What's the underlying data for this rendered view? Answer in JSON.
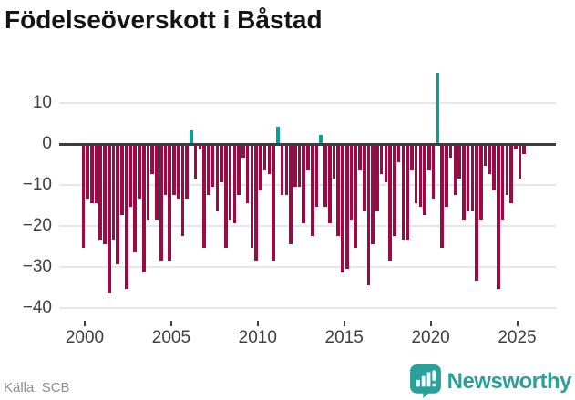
{
  "title": "Födelseöverskott i Båstad",
  "source": "Källa: SCB",
  "brand": {
    "name": "Newsworthy",
    "color": "#2aa09a"
  },
  "colors": {
    "negative_bar": "#9b0a42",
    "positive_bar": "#00a39a",
    "zero_line": "#3d3d3d",
    "gridline": "#e7e7e7",
    "axis_text": "#3f3f3f",
    "title_text": "#151515",
    "source_text": "#8f8f8f"
  },
  "chart_data": {
    "type": "bar",
    "title": "Födelseöverskott i Båstad",
    "granularity": "quarterly",
    "start": "2000 Q1",
    "end": "2025 Q3",
    "xlabel": "",
    "ylabel": "",
    "ylim": [
      -40,
      18
    ],
    "grid": "horizontal",
    "legend": "none",
    "x_ticks": [
      "2000",
      "2005",
      "2010",
      "2015",
      "2020",
      "2025"
    ],
    "y_ticks": [
      {
        "value": 10,
        "label": "10"
      },
      {
        "value": 0,
        "label": "0"
      },
      {
        "value": -10,
        "label": "−10"
      },
      {
        "value": -20,
        "label": "−20"
      },
      {
        "value": -30,
        "label": "−30"
      },
      {
        "value": -40,
        "label": "−40"
      }
    ],
    "values": [
      -25,
      -13,
      -14,
      -14,
      -23,
      -24,
      -36,
      -23,
      -29,
      -17,
      -35,
      -15,
      -26,
      -13,
      -31,
      -18,
      -7,
      -18,
      -28,
      -12,
      -28,
      -12,
      -13,
      -22,
      -13,
      3,
      -8,
      -1,
      -25,
      -12,
      -10,
      -16,
      -9,
      -25,
      -18,
      -19,
      -12,
      -3,
      -14,
      -25,
      -28,
      -11,
      -6,
      -7,
      -28,
      4,
      -12,
      -12,
      -24,
      -10,
      -10,
      -19,
      -6,
      -22,
      -15,
      2,
      -15,
      -19,
      -8,
      -22,
      -31,
      -30,
      -18,
      -25,
      -6,
      -16,
      -34,
      -24,
      -16,
      -7,
      -9,
      -28,
      -22,
      -4,
      -23,
      -23,
      -6,
      -14,
      -15,
      -17,
      -6,
      -13,
      17,
      -25,
      -15,
      -3,
      -12,
      -8,
      -18,
      -16,
      -16,
      -33,
      -18,
      -5,
      -7,
      -11,
      -35,
      -18,
      -12,
      -14,
      -1,
      -8,
      -2
    ]
  }
}
